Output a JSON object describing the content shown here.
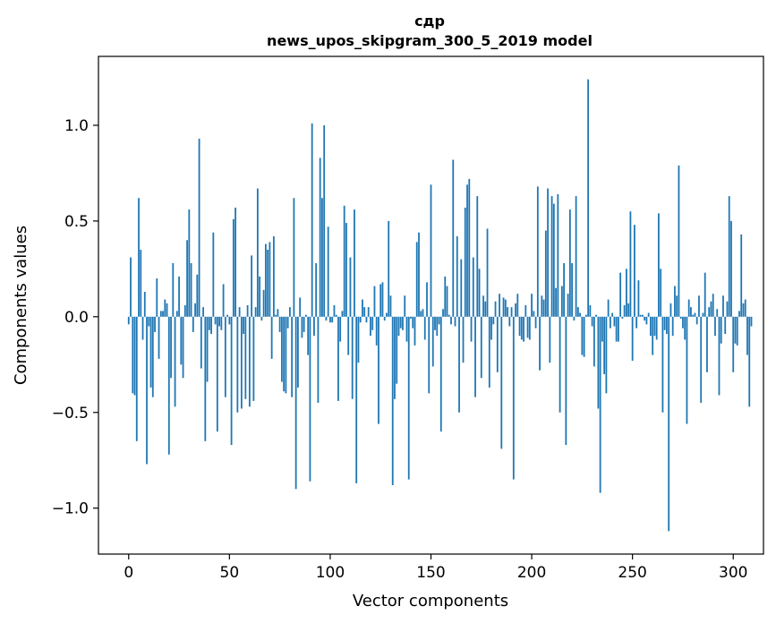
{
  "chart_data": {
    "type": "bar",
    "title": "сдр",
    "subtitle": "news_upos_skipgram_300_5_2019 model",
    "xlabel": "Vector components",
    "ylabel": "Components values",
    "xlim": [
      -15,
      315
    ],
    "ylim": [
      -1.24,
      1.36
    ],
    "x_ticks": [
      0,
      50,
      100,
      150,
      200,
      250,
      300
    ],
    "x_tick_labels": [
      "0",
      "50",
      "100",
      "150",
      "200",
      "250",
      "300"
    ],
    "y_ticks": [
      -1.0,
      -0.5,
      0.0,
      0.5,
      1.0
    ],
    "y_tick_labels": [
      "−1.0",
      "−0.5",
      "0.0",
      "0.5",
      "1.0"
    ],
    "bar_color": "#1f77b4",
    "values": [
      -0.04,
      0.31,
      -0.4,
      -0.41,
      -0.65,
      0.62,
      0.35,
      -0.12,
      0.13,
      -0.77,
      -0.05,
      -0.37,
      -0.42,
      -0.08,
      0.2,
      -0.22,
      0.03,
      0.03,
      0.09,
      0.07,
      -0.72,
      -0.32,
      0.28,
      -0.47,
      0.03,
      0.21,
      -0.25,
      -0.32,
      0.06,
      0.4,
      0.56,
      0.28,
      -0.08,
      0.07,
      0.22,
      0.93,
      -0.27,
      0.05,
      -0.65,
      -0.34,
      -0.07,
      -0.09,
      0.44,
      -0.04,
      -0.6,
      -0.05,
      -0.07,
      0.17,
      -0.42,
      0.01,
      -0.04,
      -0.67,
      0.51,
      0.57,
      -0.5,
      0.05,
      -0.48,
      -0.09,
      -0.43,
      0.06,
      -0.47,
      0.32,
      -0.44,
      0.05,
      0.67,
      0.21,
      -0.02,
      0.14,
      0.38,
      0.35,
      0.39,
      -0.22,
      0.42,
      0.01,
      0.04,
      -0.08,
      -0.34,
      -0.39,
      -0.4,
      -0.06,
      0.05,
      -0.42,
      0.62,
      -0.9,
      -0.37,
      0.1,
      -0.11,
      -0.08,
      0.01,
      -0.2,
      -0.86,
      1.01,
      -0.1,
      0.28,
      -0.45,
      0.83,
      0.62,
      1.0,
      -0.02,
      0.47,
      -0.03,
      -0.03,
      0.06,
      0.01,
      -0.44,
      -0.13,
      0.03,
      0.58,
      0.49,
      -0.2,
      0.31,
      -0.43,
      0.56,
      -0.87,
      -0.24,
      -0.03,
      0.09,
      0.05,
      -0.03,
      0.05,
      -0.1,
      -0.07,
      0.16,
      -0.15,
      -0.56,
      0.17,
      0.18,
      -0.02,
      0.02,
      0.5,
      0.11,
      -0.88,
      -0.43,
      -0.35,
      -0.1,
      -0.06,
      -0.07,
      0.11,
      -0.13,
      -0.85,
      -0.01,
      -0.06,
      -0.15,
      0.39,
      0.44,
      0.03,
      0.04,
      -0.12,
      0.18,
      -0.4,
      0.69,
      -0.26,
      -0.07,
      -0.1,
      -0.04,
      -0.6,
      0.04,
      0.21,
      0.16,
      0.01,
      -0.04,
      0.82,
      -0.05,
      0.42,
      -0.5,
      0.3,
      -0.24,
      0.57,
      0.69,
      0.72,
      -0.13,
      0.31,
      -0.42,
      0.63,
      0.25,
      -0.32,
      0.11,
      0.08,
      0.46,
      -0.37,
      -0.12,
      -0.04,
      0.08,
      -0.29,
      0.12,
      -0.69,
      0.1,
      0.09,
      0.05,
      -0.05,
      0.05,
      -0.85,
      0.07,
      0.12,
      -0.1,
      -0.12,
      -0.13,
      0.06,
      -0.11,
      -0.12,
      0.12,
      0.03,
      -0.06,
      0.68,
      -0.28,
      0.11,
      0.09,
      0.45,
      0.67,
      -0.24,
      0.63,
      0.59,
      0.15,
      0.64,
      -0.5,
      0.16,
      0.28,
      -0.67,
      0.12,
      0.56,
      0.28,
      -0.02,
      0.63,
      0.05,
      0.02,
      -0.2,
      -0.21,
      0.01,
      1.24,
      0.06,
      -0.05,
      -0.26,
      0.01,
      -0.48,
      -0.92,
      -0.13,
      -0.3,
      -0.4,
      0.09,
      -0.06,
      0.02,
      -0.05,
      -0.13,
      -0.13,
      0.23,
      -0.01,
      0.06,
      0.25,
      0.07,
      0.55,
      -0.23,
      0.48,
      -0.06,
      0.19,
      0.01,
      0.01,
      -0.02,
      -0.04,
      0.02,
      -0.1,
      -0.2,
      -0.1,
      -0.12,
      0.54,
      0.25,
      -0.5,
      -0.07,
      -0.09,
      -1.12,
      0.07,
      -0.1,
      0.16,
      0.11,
      0.79,
      -0.01,
      -0.06,
      -0.12,
      -0.56,
      0.09,
      0.05,
      0.01,
      0.02,
      -0.04,
      0.11,
      -0.45,
      0.02,
      0.23,
      -0.29,
      0.05,
      0.08,
      0.12,
      -0.1,
      0.04,
      -0.41,
      -0.14,
      0.11,
      -0.09,
      0.08,
      0.63,
      0.5,
      -0.29,
      -0.14,
      -0.15,
      0.03,
      0.43,
      0.07,
      0.09,
      -0.2,
      -0.47,
      -0.05
    ]
  }
}
